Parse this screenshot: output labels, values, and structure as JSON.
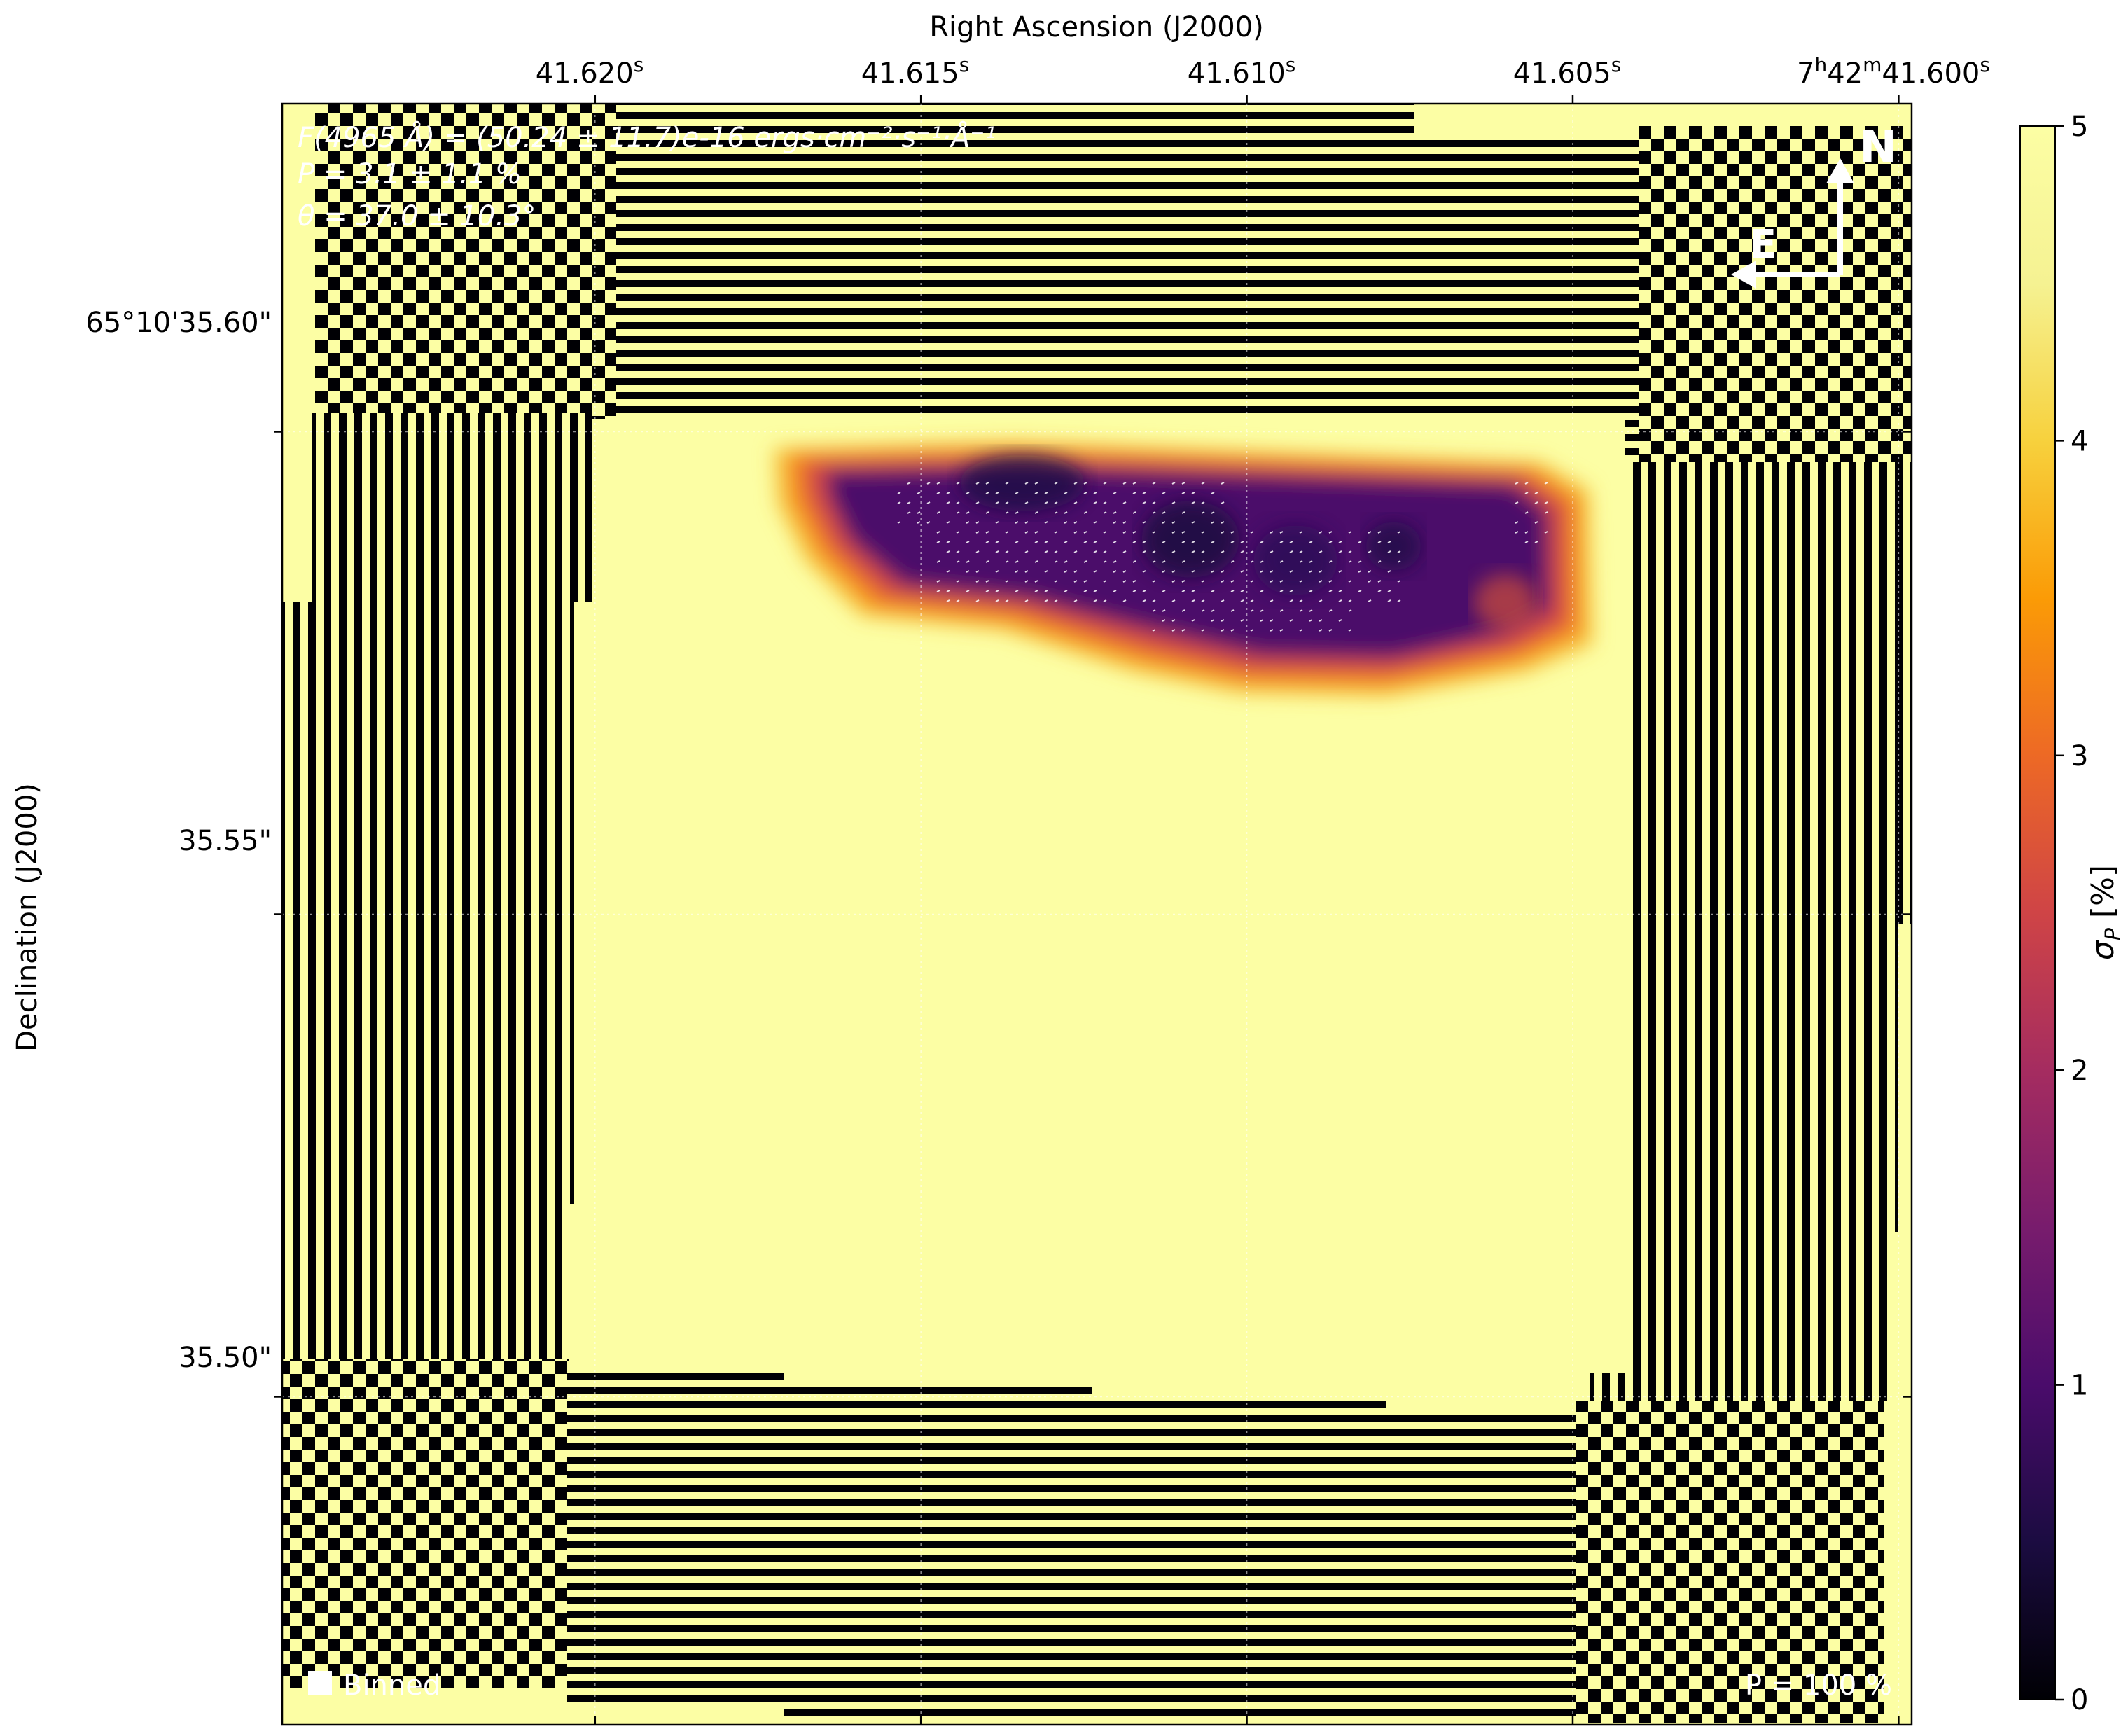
{
  "chart_data": {
    "type": "heatmap",
    "xlabel": "Right Ascension (J2000)",
    "ylabel": "Declination (J2000)",
    "x_ticks": [
      {
        "value": 41.62,
        "label_main": "41.620",
        "label_sup": "s"
      },
      {
        "value": 41.615,
        "label_main": "41.615",
        "label_sup": "s"
      },
      {
        "value": 41.61,
        "label_main": "41.610",
        "label_sup": "s"
      },
      {
        "value": 41.605,
        "label_main": "41.605",
        "label_sup": "s"
      },
      {
        "value": 41.6,
        "label_main": "41.600",
        "label_sup": "s",
        "prefix": [
          "7",
          "h",
          "42",
          "m"
        ]
      }
    ],
    "xlim": [
      41.6248,
      41.5998
    ],
    "y_ticks": [
      {
        "value": 35.6,
        "label": "65°10'35.60\""
      },
      {
        "value": 35.55,
        "label": "35.55\""
      },
      {
        "value": 35.5,
        "label": "35.50\""
      }
    ],
    "ylim": [
      35.466,
      35.634
    ],
    "colorbar": {
      "label": "σ_P [%]",
      "label_main": "σ",
      "label_sub": "P",
      "label_unit": " [%]",
      "min": 0,
      "max": 5,
      "ticks": [
        "0",
        "1",
        "2",
        "3",
        "4",
        "5"
      ],
      "colormap": "inferno"
    },
    "annotations": {
      "flux_line": "F(4965 Å) = (50.24 ± 11.7)e-16 ergs·cm⁻²·s⁻¹·Å⁻¹",
      "pol_line": "P = 3.1 ± 1.1 %",
      "angle_line": "θ = 37.0 ± 10.3°",
      "compass_north": "N",
      "compass_east": "E",
      "beam_label": "Binned",
      "vector_scale": "P = 100 %"
    },
    "grid": true,
    "background_value": 5,
    "blob_colors": [
      "#1e0c45",
      "#320a5e",
      "#500d6c",
      "#6b186e",
      "#a83655",
      "#cf4446",
      "#ed6925",
      "#fa8d0b",
      "#fbb61a",
      "#f2e661"
    ]
  }
}
